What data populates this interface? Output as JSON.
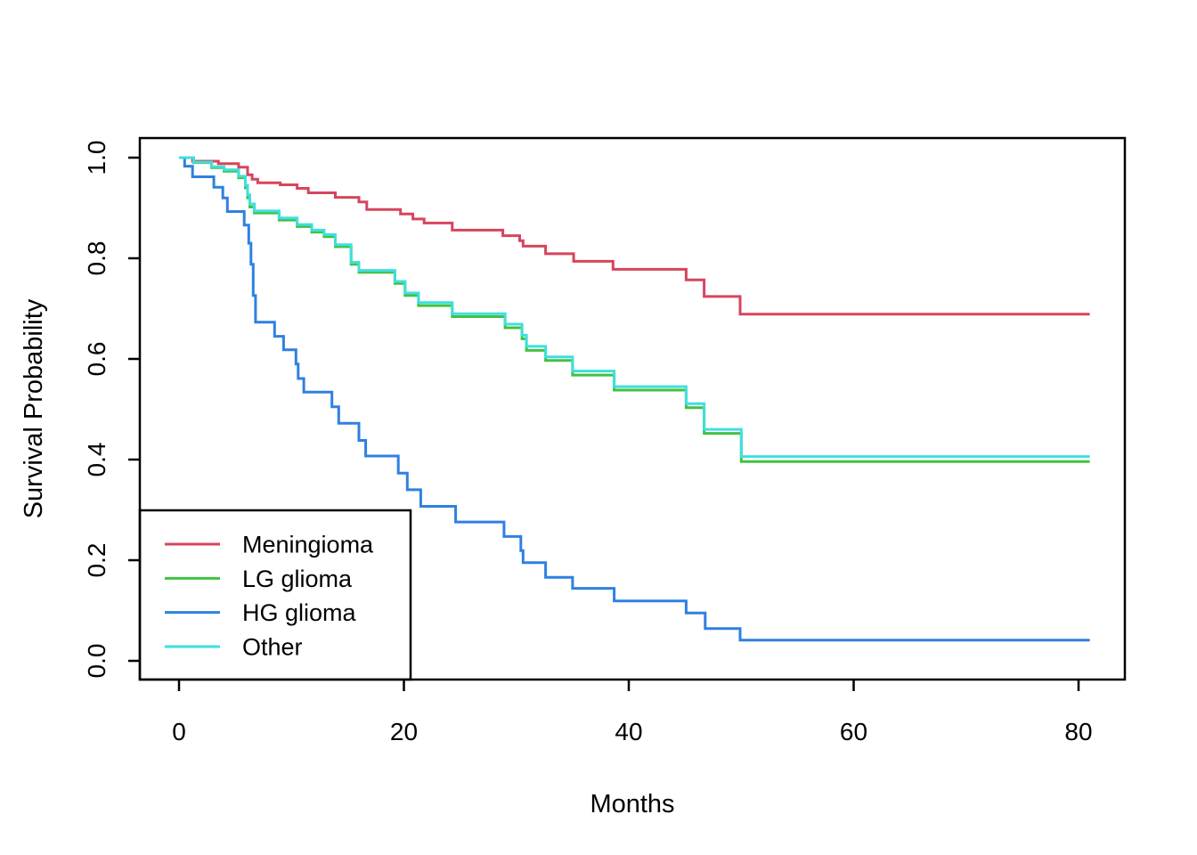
{
  "figure": {
    "background": "#ffffff",
    "axis_color": "#000000",
    "text_color": "#000000"
  },
  "chart_data": {
    "type": "line",
    "subtype": "kaplan-meier-step",
    "title": "",
    "xlabel": "Months",
    "ylabel": "Survival Probability",
    "xlim": [
      0,
      84
    ],
    "ylim": [
      0.0,
      1.0
    ],
    "x_end": 81,
    "grid": "off",
    "x_tick_values": [
      0,
      20,
      40,
      60,
      80
    ],
    "x_tick_labels": [
      "0",
      "20",
      "40",
      "60",
      "80"
    ],
    "y_tick_values": [
      0.0,
      0.2,
      0.4,
      0.6,
      0.8,
      1.0
    ],
    "y_tick_labels": [
      "0.0",
      "0.2",
      "0.4",
      "0.6",
      "0.8",
      "1.0"
    ],
    "legend": {
      "position": "bottom-left",
      "entries": [
        "Meningioma",
        "LG glioma",
        "HG glioma",
        "Other"
      ]
    },
    "series": [
      {
        "name": "Meningioma",
        "color": "#d6455d",
        "points": [
          [
            0,
            1.0
          ],
          [
            1.2,
            0.993
          ],
          [
            3.5,
            0.988
          ],
          [
            5.3,
            0.981
          ],
          [
            6.1,
            0.966
          ],
          [
            6.5,
            0.957
          ],
          [
            7.0,
            0.95
          ],
          [
            9.0,
            0.946
          ],
          [
            10.5,
            0.939
          ],
          [
            11.5,
            0.93
          ],
          [
            13.9,
            0.921
          ],
          [
            16.0,
            0.912
          ],
          [
            16.7,
            0.897
          ],
          [
            19.7,
            0.888
          ],
          [
            20.8,
            0.878
          ],
          [
            21.8,
            0.87
          ],
          [
            24.3,
            0.856
          ],
          [
            28.8,
            0.845
          ],
          [
            30.3,
            0.835
          ],
          [
            30.6,
            0.824
          ],
          [
            32.6,
            0.809
          ],
          [
            35.1,
            0.794
          ],
          [
            38.6,
            0.778
          ],
          [
            45.1,
            0.757
          ],
          [
            46.7,
            0.724
          ],
          [
            49.9,
            0.689
          ]
        ]
      },
      {
        "name": "LG glioma",
        "color": "#41c142",
        "points": [
          [
            0,
            1.0
          ],
          [
            1.3,
            0.99
          ],
          [
            2.9,
            0.98
          ],
          [
            4.0,
            0.973
          ],
          [
            5.3,
            0.96
          ],
          [
            5.9,
            0.94
          ],
          [
            6.1,
            0.92
          ],
          [
            6.3,
            0.902
          ],
          [
            6.7,
            0.89
          ],
          [
            8.9,
            0.876
          ],
          [
            10.5,
            0.863
          ],
          [
            11.8,
            0.852
          ],
          [
            12.9,
            0.843
          ],
          [
            13.9,
            0.823
          ],
          [
            15.3,
            0.788
          ],
          [
            16.0,
            0.772
          ],
          [
            19.2,
            0.75
          ],
          [
            20.1,
            0.726
          ],
          [
            21.3,
            0.706
          ],
          [
            24.3,
            0.684
          ],
          [
            29.0,
            0.662
          ],
          [
            30.5,
            0.64
          ],
          [
            30.9,
            0.617
          ],
          [
            32.6,
            0.597
          ],
          [
            35.0,
            0.568
          ],
          [
            38.7,
            0.538
          ],
          [
            45.1,
            0.503
          ],
          [
            46.7,
            0.452
          ],
          [
            50.0,
            0.396
          ]
        ]
      },
      {
        "name": "HG glioma",
        "color": "#2f80e0",
        "points": [
          [
            0,
            1.0
          ],
          [
            0.5,
            0.983
          ],
          [
            1.2,
            0.962
          ],
          [
            3.1,
            0.941
          ],
          [
            3.9,
            0.92
          ],
          [
            4.3,
            0.893
          ],
          [
            5.8,
            0.866
          ],
          [
            6.2,
            0.83
          ],
          [
            6.4,
            0.788
          ],
          [
            6.6,
            0.726
          ],
          [
            6.8,
            0.673
          ],
          [
            8.5,
            0.645
          ],
          [
            9.3,
            0.618
          ],
          [
            10.4,
            0.59
          ],
          [
            10.6,
            0.561
          ],
          [
            11.1,
            0.534
          ],
          [
            13.6,
            0.505
          ],
          [
            14.2,
            0.472
          ],
          [
            16.0,
            0.438
          ],
          [
            16.6,
            0.407
          ],
          [
            19.5,
            0.373
          ],
          [
            20.3,
            0.34
          ],
          [
            21.5,
            0.307
          ],
          [
            24.6,
            0.276
          ],
          [
            28.9,
            0.247
          ],
          [
            30.4,
            0.219
          ],
          [
            30.6,
            0.195
          ],
          [
            32.6,
            0.166
          ],
          [
            35.0,
            0.144
          ],
          [
            38.7,
            0.119
          ],
          [
            45.1,
            0.095
          ],
          [
            46.8,
            0.064
          ],
          [
            49.9,
            0.041
          ]
        ]
      },
      {
        "name": "Other",
        "color": "#3fdfdf",
        "points": [
          [
            0,
            1.0
          ],
          [
            1.3,
            0.991
          ],
          [
            2.9,
            0.982
          ],
          [
            4.0,
            0.976
          ],
          [
            5.3,
            0.963
          ],
          [
            5.9,
            0.945
          ],
          [
            6.1,
            0.926
          ],
          [
            6.3,
            0.908
          ],
          [
            6.7,
            0.894
          ],
          [
            8.9,
            0.88
          ],
          [
            10.5,
            0.867
          ],
          [
            11.8,
            0.856
          ],
          [
            12.9,
            0.847
          ],
          [
            13.9,
            0.827
          ],
          [
            15.3,
            0.792
          ],
          [
            16.0,
            0.776
          ],
          [
            19.2,
            0.754
          ],
          [
            20.1,
            0.731
          ],
          [
            21.3,
            0.712
          ],
          [
            24.3,
            0.69
          ],
          [
            29.0,
            0.669
          ],
          [
            30.5,
            0.647
          ],
          [
            30.9,
            0.625
          ],
          [
            32.6,
            0.604
          ],
          [
            35.0,
            0.576
          ],
          [
            38.7,
            0.545
          ],
          [
            45.1,
            0.511
          ],
          [
            46.7,
            0.46
          ],
          [
            50.0,
            0.406
          ]
        ]
      }
    ]
  }
}
